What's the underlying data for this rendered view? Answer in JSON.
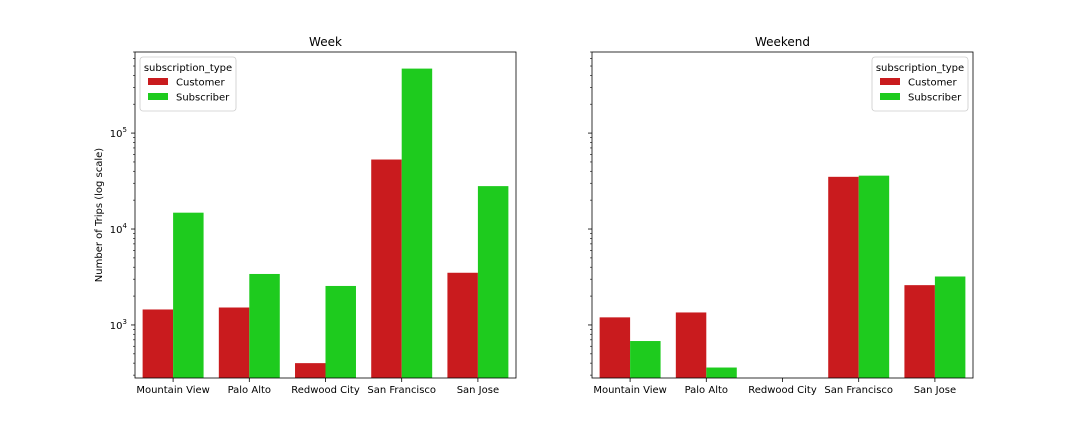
{
  "chart_data": [
    {
      "type": "bar",
      "title": "Week",
      "ylabel": "Number of Trips (log scale)",
      "yscale": "log",
      "ylim": [
        280,
        700000
      ],
      "yticks": [
        {
          "value": 1000,
          "label": "10",
          "exp": "3"
        },
        {
          "value": 10000,
          "label": "10",
          "exp": "4"
        },
        {
          "value": 100000,
          "label": "10",
          "exp": "5"
        }
      ],
      "categories": [
        "Mountain View",
        "Palo Alto",
        "Redwood City",
        "San Francisco",
        "San Jose"
      ],
      "legend_title": "subscription_type",
      "legend_position": "top-left",
      "series": [
        {
          "name": "Customer",
          "color": "#c91b1e",
          "values": [
            1450,
            1520,
            400,
            53000,
            3500
          ]
        },
        {
          "name": "Subscriber",
          "color": "#1ecb1e",
          "values": [
            14800,
            3400,
            2550,
            470000,
            28000
          ]
        }
      ]
    },
    {
      "type": "bar",
      "title": "Weekend",
      "ylabel": "",
      "yscale": "log",
      "ylim": [
        280,
        700000
      ],
      "yticks": [],
      "categories": [
        "Mountain View",
        "Palo Alto",
        "Redwood City",
        "San Francisco",
        "San Jose"
      ],
      "legend_title": "subscription_type",
      "legend_position": "top-right",
      "series": [
        {
          "name": "Customer",
          "color": "#c91b1e",
          "values": [
            1200,
            1350,
            null,
            35000,
            2600
          ]
        },
        {
          "name": "Subscriber",
          "color": "#1ecb1e",
          "values": [
            680,
            360,
            null,
            36000,
            3200
          ]
        }
      ]
    }
  ]
}
